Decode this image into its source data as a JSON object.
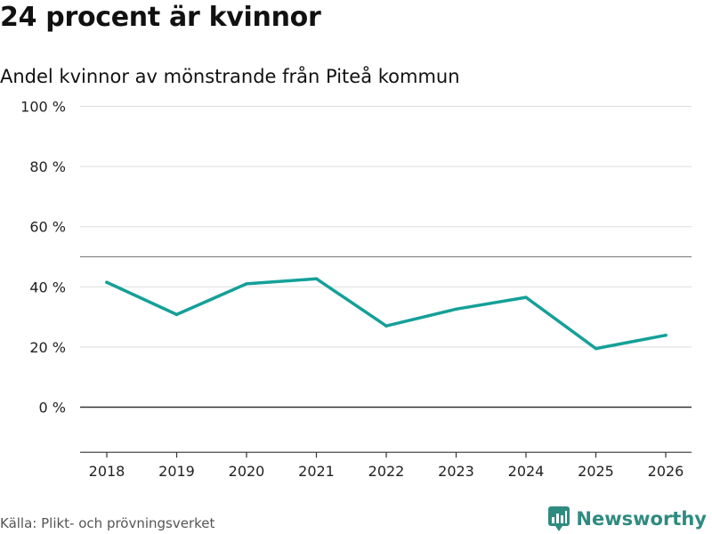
{
  "header": {
    "title": "24 procent är kvinnor",
    "subtitle": "Andel kvinnor av mönstrande från Piteå kommun"
  },
  "chart_data": {
    "type": "line",
    "title": "24 procent är kvinnor",
    "subtitle": "Andel kvinnor av mönstrande från Piteå kommun",
    "xlabel": "",
    "ylabel": "",
    "categories": [
      "2018",
      "2019",
      "2020",
      "2021",
      "2022",
      "2023",
      "2024",
      "2025",
      "2026"
    ],
    "series": [
      {
        "name": "Andel kvinnor",
        "values": [
          41.5,
          30.8,
          41.0,
          42.7,
          27.0,
          32.6,
          36.5,
          19.5,
          23.9
        ]
      }
    ],
    "ylim": [
      -15,
      100
    ],
    "yticks": [
      0,
      20,
      40,
      60,
      80,
      100
    ],
    "ytick_labels": [
      "0 %",
      "20 %",
      "40 %",
      "60 %",
      "80 %",
      "100 %"
    ],
    "reference_line": 50,
    "line_color": "#14a099",
    "grid": true
  },
  "footer": {
    "source": "Källa: Plikt- och prövningsverket",
    "brand": "Newsworthy",
    "brand_color": "#2e8b7f"
  }
}
